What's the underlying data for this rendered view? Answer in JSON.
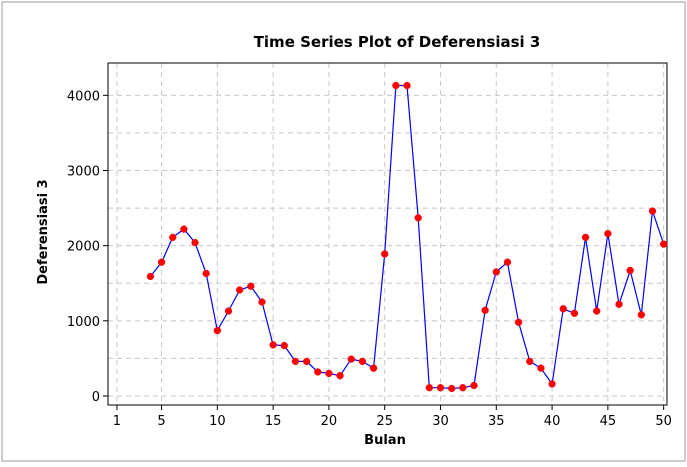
{
  "chart_data": {
    "type": "line",
    "title": "Time Series Plot of Deferensiasi 3",
    "xlabel": "Bulan",
    "ylabel": "Deferensiasi 3",
    "x": [
      4,
      5,
      6,
      7,
      8,
      9,
      10,
      11,
      12,
      13,
      14,
      15,
      16,
      17,
      18,
      19,
      20,
      21,
      22,
      23,
      24,
      25,
      26,
      27,
      28,
      29,
      30,
      31,
      32,
      33,
      34,
      35,
      36,
      37,
      38,
      39,
      40,
      41,
      42,
      43,
      44,
      45,
      46,
      47,
      48,
      49,
      50
    ],
    "series": [
      {
        "values": [
          1590,
          1780,
          2110,
          2220,
          2040,
          1630,
          870,
          1130,
          1410,
          1460,
          1250,
          680,
          670,
          460,
          460,
          320,
          300,
          270,
          490,
          460,
          370,
          1890,
          4130,
          4130,
          2370,
          110,
          110,
          100,
          110,
          140,
          1140,
          1650,
          1780,
          980,
          460,
          370,
          160,
          1160,
          1100,
          2110,
          1130,
          2160,
          1220,
          1670,
          1080,
          2460,
          2020
        ],
        "line_color": "#0000ff",
        "marker_color": "#ff0000"
      }
    ],
    "xlim": [
      0.2,
      50.3
    ],
    "ylim": [
      -120,
      4430
    ],
    "xticks": [
      1,
      5,
      10,
      15,
      20,
      25,
      30,
      35,
      40,
      45,
      50
    ],
    "yticks": [
      0,
      1000,
      2000,
      3000,
      4000
    ],
    "grid": true,
    "legend": "none",
    "colors": {
      "figure_background": "#ffffff",
      "plot_background": "#ffffff",
      "grid": "#c8c8c8"
    }
  }
}
